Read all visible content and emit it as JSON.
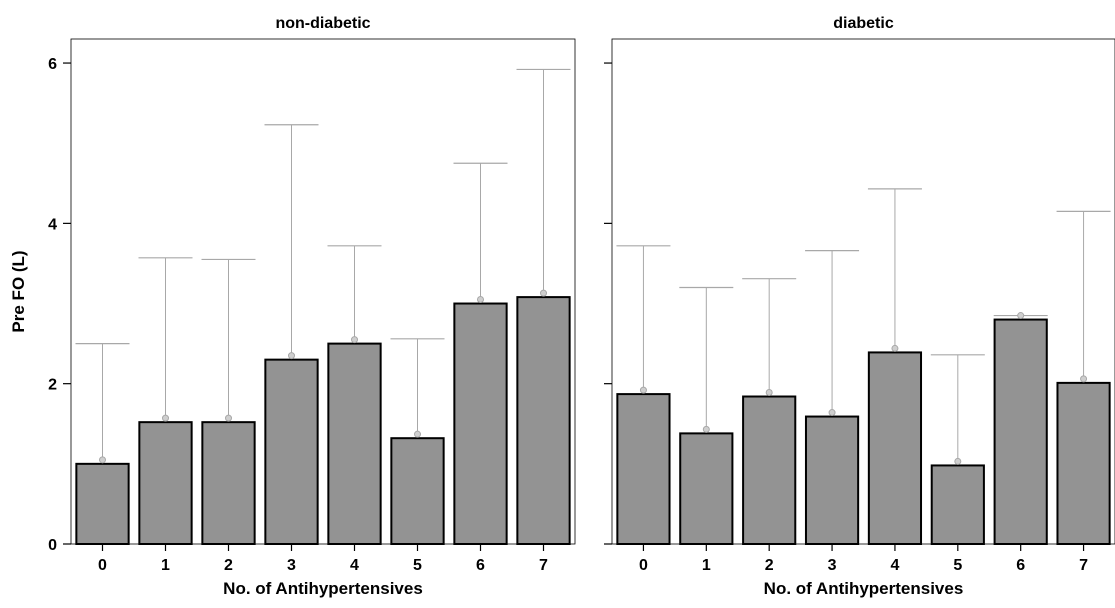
{
  "chart_data": [
    {
      "type": "bar",
      "title": "non-diabetic",
      "xlabel": "No. of Antihypertensives",
      "ylabel": "Pre FO (L)",
      "ylim": [
        0,
        6.3
      ],
      "yticks": [
        0,
        2,
        4,
        6
      ],
      "categories": [
        "0",
        "1",
        "2",
        "3",
        "4",
        "5",
        "6",
        "7"
      ],
      "values": [
        1.0,
        1.52,
        1.52,
        2.3,
        2.5,
        1.32,
        3.0,
        3.08
      ],
      "points": [
        1.05,
        1.57,
        1.57,
        2.35,
        2.55,
        1.37,
        3.05,
        3.13
      ],
      "error_upper": [
        2.5,
        3.57,
        3.55,
        5.23,
        3.72,
        2.56,
        4.75,
        5.92
      ]
    },
    {
      "type": "bar",
      "title": "diabetic",
      "xlabel": "No. of Antihypertensives",
      "ylabel": "",
      "ylim": [
        0,
        6.3
      ],
      "yticks": [
        0,
        2,
        4,
        6
      ],
      "categories": [
        "0",
        "1",
        "2",
        "3",
        "4",
        "5",
        "6",
        "7"
      ],
      "values": [
        1.87,
        1.38,
        1.84,
        1.59,
        2.39,
        0.98,
        2.8,
        2.01
      ],
      "points": [
        1.92,
        1.43,
        1.89,
        1.64,
        2.44,
        1.03,
        2.85,
        2.06
      ],
      "error_upper": [
        3.72,
        3.2,
        3.31,
        3.66,
        4.43,
        2.36,
        2.85,
        4.15
      ]
    }
  ],
  "style": {
    "bar_fill": "#939393",
    "bar_stroke": "#000000",
    "error_color": "#a8a8a8",
    "point_color": "#a8a8a8"
  }
}
